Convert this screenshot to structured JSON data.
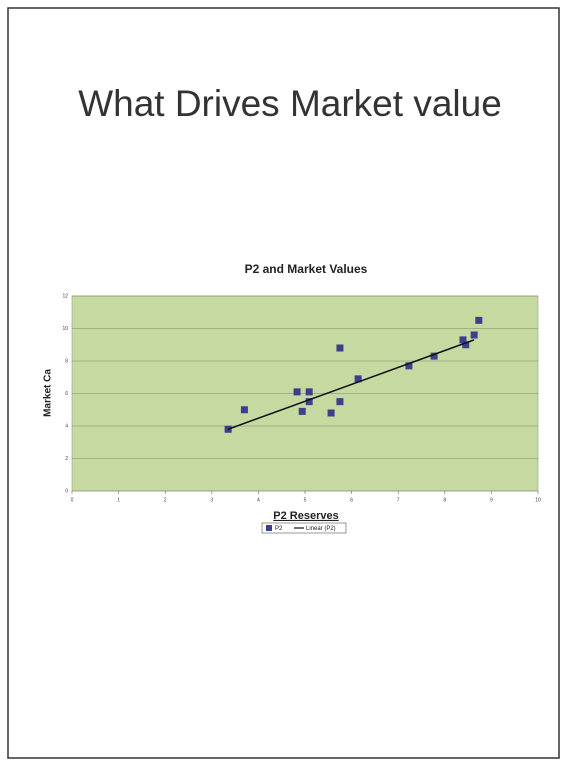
{
  "title": "What Drives Market value",
  "chart_data": {
    "type": "scatter",
    "title": "P2 and Market Values",
    "x_label": "P2 Reserves",
    "y_label": "Market Ca",
    "series": [
      {
        "name": "P2",
        "color": "#3b3f8c",
        "x": [
          3.35,
          3.7,
          4.83,
          4.94,
          5.09,
          5.09,
          5.56,
          5.75,
          5.75,
          6.14,
          7.23,
          7.77,
          8.39,
          8.45,
          8.63,
          8.73
        ],
        "values": [
          3.8,
          5.0,
          6.1,
          4.9,
          6.1,
          5.5,
          4.8,
          5.5,
          8.8,
          6.9,
          7.7,
          8.3,
          9.3,
          9.0,
          9.6,
          10.5
        ]
      },
      {
        "name": "Linear (P2)",
        "color": "#111111",
        "x": [
          3.35,
          8.63
        ],
        "values": [
          3.8,
          9.3
        ]
      }
    ],
    "xlim": [
      0,
      10
    ],
    "xticks": [
      0,
      1,
      2,
      3,
      4,
      5,
      6,
      7,
      8,
      9,
      10
    ],
    "ylim": [
      0,
      12
    ],
    "yticks": [
      0,
      2,
      4,
      6,
      8,
      10,
      12
    ],
    "grid": true,
    "plot_color": "#c6d9a1"
  }
}
